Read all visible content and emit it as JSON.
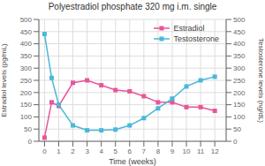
{
  "chart_data": {
    "type": "line",
    "title": "Polyestradiol phosphate 320 mg i.m. single",
    "xlabel": "Time (weeks)",
    "ylabel": "Estradiol levels (pg/mL)",
    "y2label": "Testosterone levels (ng/dL)",
    "x": [
      0,
      0.5,
      1,
      2,
      3,
      4,
      5,
      6,
      7,
      8,
      9,
      10,
      11,
      12
    ],
    "series": [
      {
        "name": "Estradiol",
        "color": "#e8559a",
        "marker": "square",
        "values": [
          15,
          160,
          145,
          240,
          250,
          230,
          210,
          205,
          185,
          160,
          160,
          140,
          140,
          125
        ]
      },
      {
        "name": "Testosterone",
        "color": "#4ab8d8",
        "marker": "square",
        "axis": "y2",
        "values": [
          440,
          260,
          150,
          65,
          45,
          45,
          48,
          65,
          95,
          135,
          175,
          225,
          250,
          265
        ]
      }
    ],
    "xlim": [
      -0.4,
      12.8
    ],
    "xticks": [
      0,
      1,
      2,
      3,
      4,
      5,
      6,
      7,
      8,
      9,
      10,
      11,
      12
    ],
    "ylim": [
      0,
      500
    ],
    "yticks": [
      0,
      50,
      100,
      150,
      200,
      250,
      300,
      350,
      400,
      450,
      500
    ],
    "y2lim": [
      0,
      500
    ],
    "y2ticks": [
      0,
      50,
      100,
      150,
      200,
      250,
      300,
      350,
      400,
      450,
      500
    ],
    "grid": true,
    "legend": "upper right"
  }
}
